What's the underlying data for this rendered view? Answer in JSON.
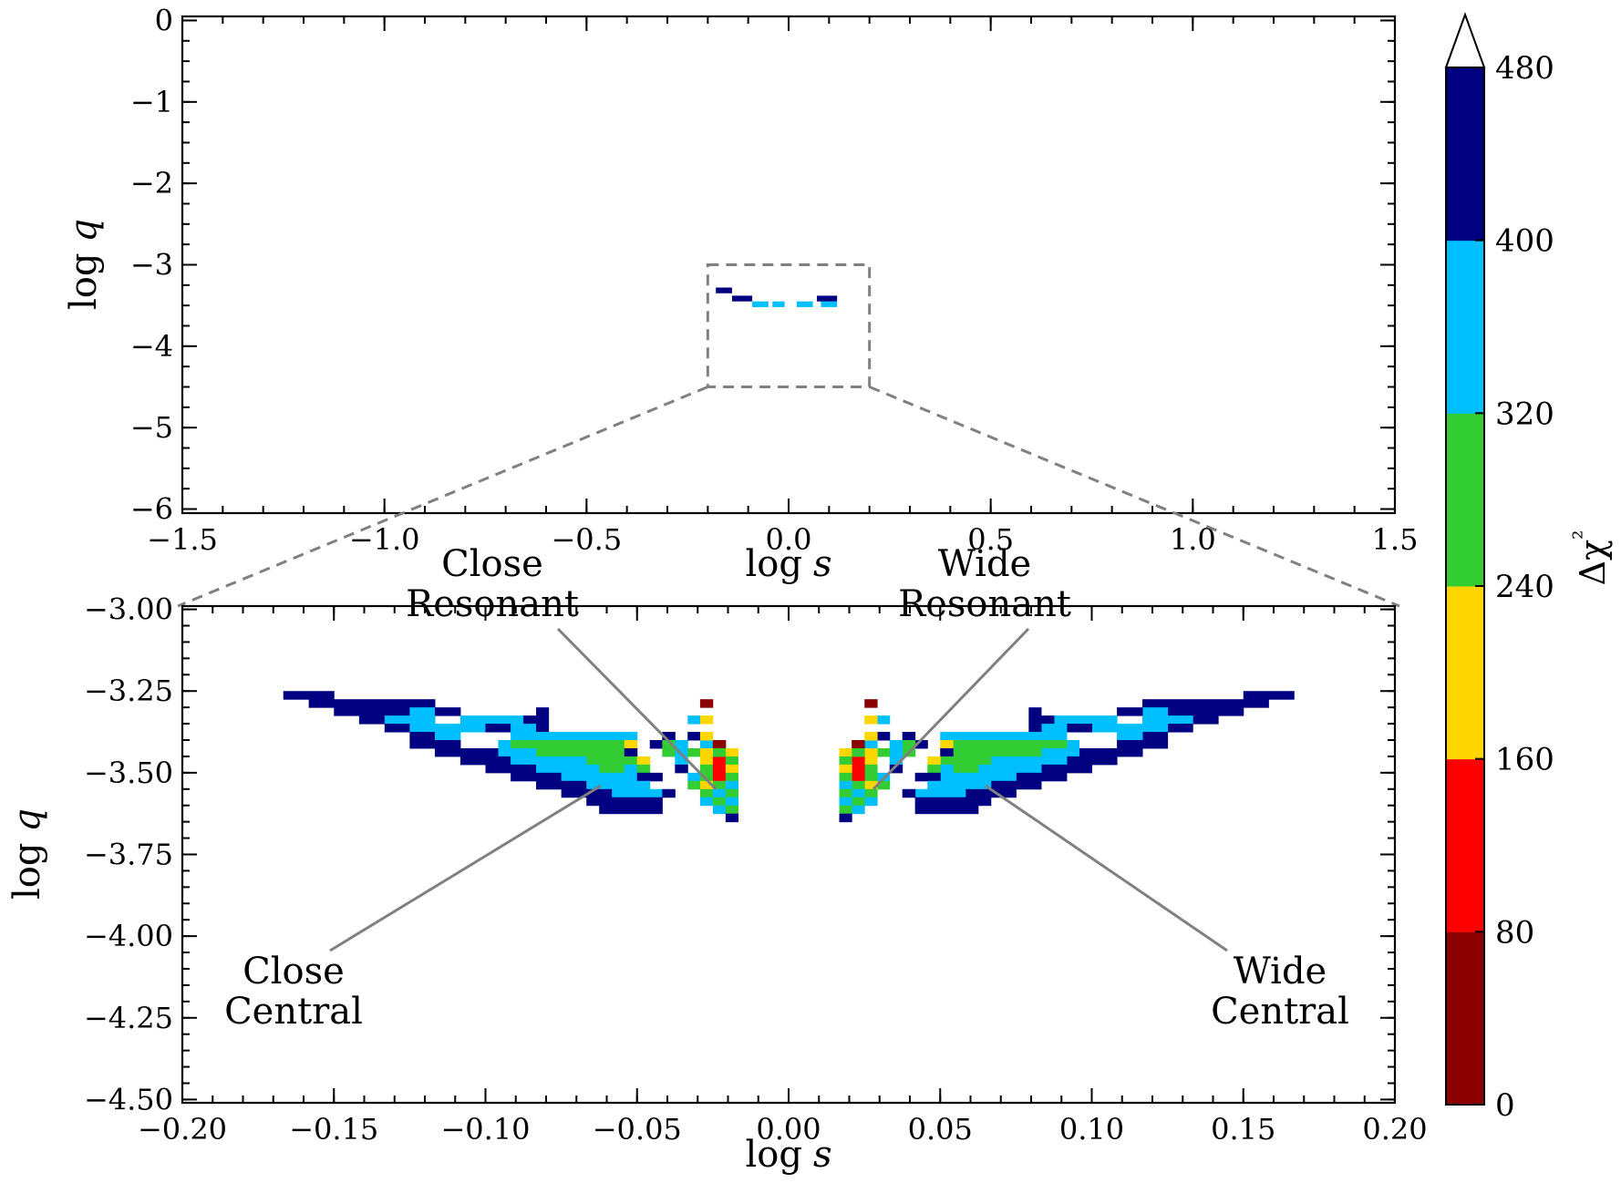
{
  "chart_data": [
    {
      "id": "top",
      "type": "heatmap",
      "xlabel": "log s",
      "ylabel": "log q",
      "xlim": [
        -1.5,
        1.5
      ],
      "ylim": [
        -6.05,
        0.05
      ],
      "xticks": [
        "−1.5",
        "−1.0",
        "−0.5",
        "0.0",
        "0.5",
        "1.0",
        "1.5"
      ],
      "yticks": [
        "0",
        "−1",
        "−2",
        "−3",
        "−4",
        "−5",
        "−6"
      ],
      "zoom_box": {
        "x0": -0.2,
        "x1": 0.2,
        "y0": -4.5,
        "y1": -3.0
      },
      "cells": [
        {
          "x0": -0.18,
          "x1": -0.14,
          "y0": -3.35,
          "y1": -3.28,
          "bin": 5
        },
        {
          "x0": -0.14,
          "x1": -0.09,
          "y0": -3.45,
          "y1": -3.38,
          "bin": 5
        },
        {
          "x0": -0.09,
          "x1": -0.05,
          "y0": -3.52,
          "y1": -3.45,
          "bin": 4
        },
        {
          "x0": -0.04,
          "x1": -0.01,
          "y0": -3.52,
          "y1": -3.45,
          "bin": 4
        },
        {
          "x0": 0.02,
          "x1": 0.06,
          "y0": -3.52,
          "y1": -3.45,
          "bin": 4
        },
        {
          "x0": 0.08,
          "x1": 0.12,
          "y0": -3.52,
          "y1": -3.45,
          "bin": 4
        },
        {
          "x0": 0.07,
          "x1": 0.12,
          "y0": -3.45,
          "y1": -3.38,
          "bin": 5
        }
      ]
    },
    {
      "id": "bottom",
      "type": "heatmap",
      "xlabel": "log s",
      "ylabel": "log q",
      "xlim": [
        -0.2,
        0.2
      ],
      "ylim": [
        -4.51,
        -2.99
      ],
      "xticks": [
        "−0.20",
        "−0.15",
        "−0.10",
        "−0.05",
        "0.00",
        "0.05",
        "0.10",
        "0.15",
        "0.20"
      ],
      "yticks": [
        "−3.00",
        "−3.25",
        "−3.50",
        "−3.75",
        "−4.00",
        "−4.25",
        "−4.50"
      ],
      "grid": {
        "dx": 0.00833,
        "dy": 0.025,
        "x_start": -0.1667,
        "y_top": -3.25
      },
      "rows": [
        [
          "-0.1667..-0.1500:5"
        ],
        [
          "-0.1583..-0.1167:5"
        ],
        [
          "-0.1500..-0.1250:5",
          "-0.1250..-0.1167:4",
          "-0.1167..-0.1083:5",
          "-0.0833..-0.0792:5"
        ],
        [
          "-0.1417..-0.1333:5",
          "-0.1333..-0.1167:4",
          "-0.1083..-0.0875:4",
          "-0.0875..-0.0792:5"
        ],
        [
          "-0.1333..-0.1250:5",
          "-0.1250..-0.1000:4",
          "-0.1000..-0.0917:5",
          "-0.0917..-0.0833:4",
          "-0.0833..-0.0792:5"
        ],
        [
          "-0.1250..-0.1167:5",
          "-0.1167..-0.1083:4",
          "-0.0917..-0.0833:4",
          "-0.0833..-0.0500:4",
          "-0.0417..-0.0375:5",
          "-0.0333..-0.0292:4"
        ],
        [
          "-0.1250..-0.1083:5",
          "-0.0958..-0.0917:4",
          "-0.0917..-0.0542:3",
          "-0.0542..-0.0500:2",
          "-0.0458..-0.0417:5",
          "-0.0417..-0.0375:3",
          "-0.0375..-0.0333:4",
          "-0.0292..-0.0250:4",
          "-0.0250..-0.0208:0"
        ],
        [
          "-0.1167..-0.0958:5",
          "-0.0958..-0.0833:4",
          "-0.0833..-0.0542:3",
          "-0.0542..-0.0500:5",
          "-0.0417..-0.0375:3",
          "-0.0375..-0.0333:4",
          "-0.0292..-0.0250:1",
          "-0.0250..-0.0208:0",
          "-0.0208..-0.0167:2"
        ],
        [
          "-0.1083..-0.0917:5",
          "-0.0917..-0.0833:4",
          "-0.0833..-0.0667:4",
          "-0.0667..-0.0500:3",
          "-0.0500..-0.0458:2",
          "-0.0375..-0.0333:4",
          "-0.0292..-0.0250:2",
          "-0.0250..-0.0208:1",
          "-0.0208..-0.0167:3"
        ],
        [
          "-0.1000..-0.0833:5",
          "-0.0833..-0.0625:4",
          "-0.0625..-0.0542:3",
          "-0.0542..-0.0500:4",
          "-0.0500..-0.0458:3",
          "-0.0375..-0.0333:5",
          "-0.0292..-0.0250:3",
          "-0.0250..-0.0208:1",
          "-0.0208..-0.0167:2"
        ],
        [
          "-0.0917..-0.0750:5",
          "-0.0750..-0.0500:4",
          "-0.0500..-0.0417:5",
          "-0.0333..-0.0292:4",
          "-0.0292..-0.0250:3",
          "-0.0250..-0.0208:1",
          "-0.0208..-0.0167:3"
        ],
        [
          "-0.0833..-0.0667:5",
          "-0.0667..-0.0458:4",
          "-0.0333..-0.0292:3",
          "-0.0292..-0.0250:2",
          "-0.0250..-0.0208:3",
          "-0.0208..-0.0167:4"
        ],
        [
          "-0.0750..-0.0583:5",
          "-0.0583..-0.0417:4",
          "-0.0417..-0.0375:5",
          "-0.0292..-0.0250:3",
          "-0.0250..-0.0208:4",
          "-0.0208..-0.0167:3"
        ],
        [
          "-0.0667..-0.0417:5",
          "-0.0292..-0.0250:4",
          "-0.0250..-0.0208:3",
          "-0.0208..-0.0167:4"
        ],
        [
          "-0.0625..-0.0417:5",
          "-0.0250..-0.0208:4",
          "-0.0208..-0.0167:3"
        ],
        [
          "-0.0208..-0.0167:5"
        ]
      ],
      "extra_cells": [
        {
          "x": -0.0292,
          "y": -3.3,
          "bin": 0
        },
        {
          "x": -0.0333,
          "y": -3.35,
          "bin": 4
        },
        {
          "x": -0.0292,
          "y": -3.35,
          "bin": 2
        },
        {
          "x": -0.0333,
          "y": -3.4,
          "bin": 5
        },
        {
          "x": -0.0292,
          "y": -3.4,
          "bin": 2
        },
        {
          "x": -0.0333,
          "y": -3.45,
          "bin": 3
        },
        {
          "x": -0.0292,
          "y": -3.45,
          "bin": 2
        },
        {
          "x": -0.025,
          "y": -3.45,
          "bin": 3
        }
      ],
      "mirror": true,
      "annotations": [
        {
          "line1": "Close",
          "line2": "Resonant",
          "side": "left-top",
          "target": [
            -0.024,
            -3.55
          ]
        },
        {
          "line1": "Wide",
          "line2": "Resonant",
          "side": "right-top",
          "target": [
            0.028,
            -3.55
          ]
        },
        {
          "line1": "Close",
          "line2": "Central",
          "side": "left-bottom",
          "target": [
            -0.062,
            -3.54
          ]
        },
        {
          "line1": "Wide",
          "line2": "Central",
          "side": "right-bottom",
          "target": [
            0.065,
            -3.54
          ]
        }
      ]
    }
  ],
  "colorbar": {
    "label": "Δχ²",
    "ticks": [
      "0",
      "80",
      "160",
      "240",
      "320",
      "400",
      "480"
    ],
    "bins": [
      {
        "range": [
          0,
          80
        ],
        "color": "#8b0000"
      },
      {
        "range": [
          80,
          160
        ],
        "color": "#ff0000"
      },
      {
        "range": [
          160,
          240
        ],
        "color": "#ffd700"
      },
      {
        "range": [
          240,
          320
        ],
        "color": "#32cd32"
      },
      {
        "range": [
          320,
          400
        ],
        "color": "#00bfff"
      },
      {
        "range": [
          400,
          480
        ],
        "color": "#000080"
      }
    ],
    "extend": "max"
  }
}
